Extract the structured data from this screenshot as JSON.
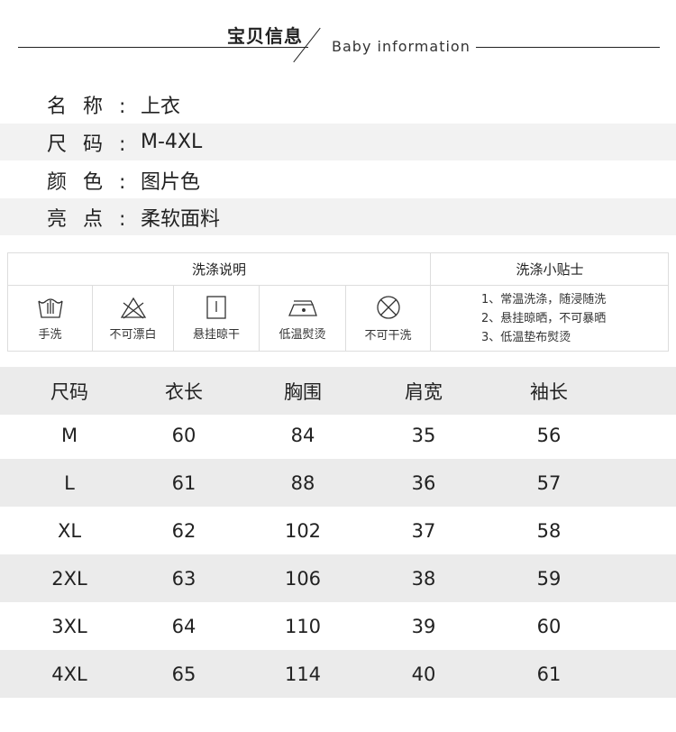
{
  "header": {
    "title_cn": "宝贝信息",
    "title_en": "Baby information"
  },
  "info": [
    {
      "key": "名称:",
      "value": "上衣"
    },
    {
      "key": "尺码:",
      "value": "M-4XL"
    },
    {
      "key": "颜色:",
      "value": "图片色"
    },
    {
      "key": "亮点:",
      "value": "柔软面料"
    }
  ],
  "care": {
    "instructions_title": "洗涤说明",
    "tips_title": "洗涤小贴士",
    "items": [
      {
        "icon": "hand-wash-icon",
        "label": "手洗"
      },
      {
        "icon": "no-bleach-icon",
        "label": "不可漂白"
      },
      {
        "icon": "hang-dry-icon",
        "label": "悬挂晾干"
      },
      {
        "icon": "low-iron-icon",
        "label": "低温熨烫"
      },
      {
        "icon": "no-dry-clean-icon",
        "label": "不可干洗"
      }
    ],
    "tips": [
      "1、常温洗涤，随浸随洗",
      "2、悬挂晾晒，不可暴晒",
      "3、低温垫布熨烫"
    ]
  },
  "size_table": {
    "headers": [
      "尺码",
      "衣长",
      "胸围",
      "肩宽",
      "袖长"
    ],
    "rows": [
      [
        "M",
        "60",
        "84",
        "35",
        "56"
      ],
      [
        "L",
        "61",
        "88",
        "36",
        "57"
      ],
      [
        "XL",
        "62",
        "102",
        "37",
        "58"
      ],
      [
        "2XL",
        "63",
        "106",
        "38",
        "59"
      ],
      [
        "3XL",
        "64",
        "110",
        "39",
        "60"
      ],
      [
        "4XL",
        "65",
        "114",
        "40",
        "61"
      ]
    ]
  }
}
